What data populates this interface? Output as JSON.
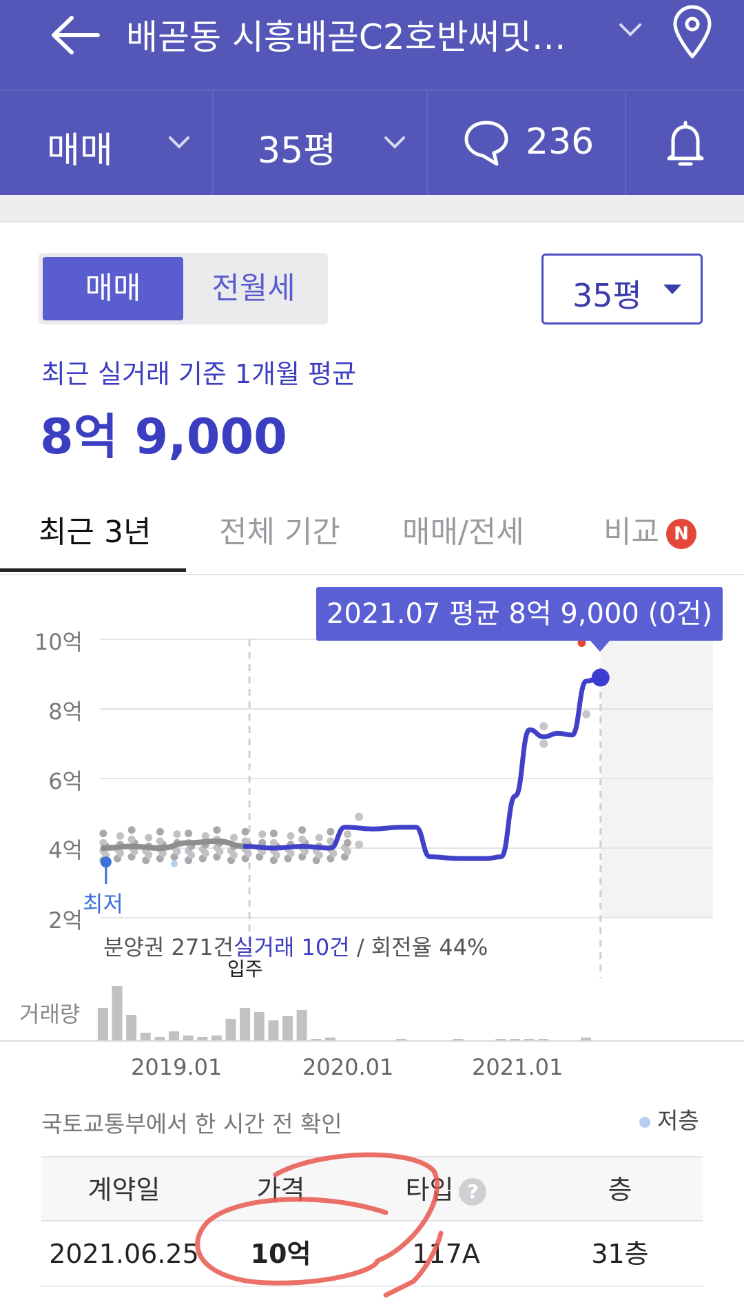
{
  "header": {
    "title": "배곧동 시흥배곧C2호반써밋…",
    "icons": {
      "back": "arrow-left-icon",
      "title_dropdown": "chevron-down-icon",
      "location": "location-pin-icon"
    }
  },
  "filters": {
    "deal_type": "매매",
    "size": "35평",
    "comment_count": "236",
    "icons": {
      "comments": "speech-bubble-icon",
      "alert": "bell-icon"
    }
  },
  "toggle": {
    "active": "매매",
    "inactive": "전월세"
  },
  "size_select": {
    "value": "35평"
  },
  "summary": {
    "label": "최근 실거래 기준 1개월 평균",
    "value": "8억 9,000"
  },
  "tabs": [
    {
      "label": "최근 3년",
      "active": true
    },
    {
      "label": "전체 기간",
      "active": false
    },
    {
      "label": "매매/전세",
      "active": false
    },
    {
      "label": "비교",
      "active": false,
      "badge": "N"
    }
  ],
  "chart_data": {
    "type": "line",
    "tooltip": "2021.07 평균 8억 9,000 (0건)",
    "y_ticks": [
      "10억",
      "8억",
      "6억",
      "4억",
      "2억"
    ],
    "ylim": [
      2,
      10
    ],
    "x_ticks": [
      "2019.01",
      "2020.01",
      "2021.01"
    ],
    "lowest_label": "최저",
    "move_in_label": "입주",
    "volume_label": "거래량",
    "stats": {
      "presale": "분양권 271건",
      "actual": "실거래 10건",
      "turnover": " / 회전율 44%"
    },
    "series": [
      {
        "x": [
          "2018.08",
          "2018.10",
          "2018.12",
          "2019.02",
          "2019.04",
          "2019.06",
          "2019.08",
          "2019.10",
          "2019.12",
          "2020.01",
          "2020.03",
          "2020.05",
          "2020.06",
          "2020.07",
          "2020.09",
          "2020.11",
          "2020.12",
          "2021.01",
          "2021.02",
          "2021.03",
          "2021.04",
          "2021.05",
          "2021.06",
          "2021.07"
        ],
        "y": [
          4.0,
          4.05,
          4.0,
          4.15,
          4.2,
          4.05,
          4.0,
          4.05,
          4.0,
          4.6,
          4.55,
          4.6,
          4.6,
          3.75,
          3.7,
          3.7,
          3.75,
          5.5,
          7.4,
          7.2,
          7.3,
          7.25,
          8.8,
          8.9
        ]
      }
    ],
    "accent": "#4040c8",
    "grey_line": "#8e8e8e"
  },
  "source_note": "국토교통부에서 한 시간 전 확인",
  "legend": {
    "low_floor": "저층"
  },
  "table": {
    "headers": [
      "계약일",
      "가격",
      "타입",
      "층"
    ],
    "rows": [
      [
        "2021.06.25",
        "10억",
        "117A",
        "31층"
      ]
    ],
    "help_icon": "question-icon"
  }
}
